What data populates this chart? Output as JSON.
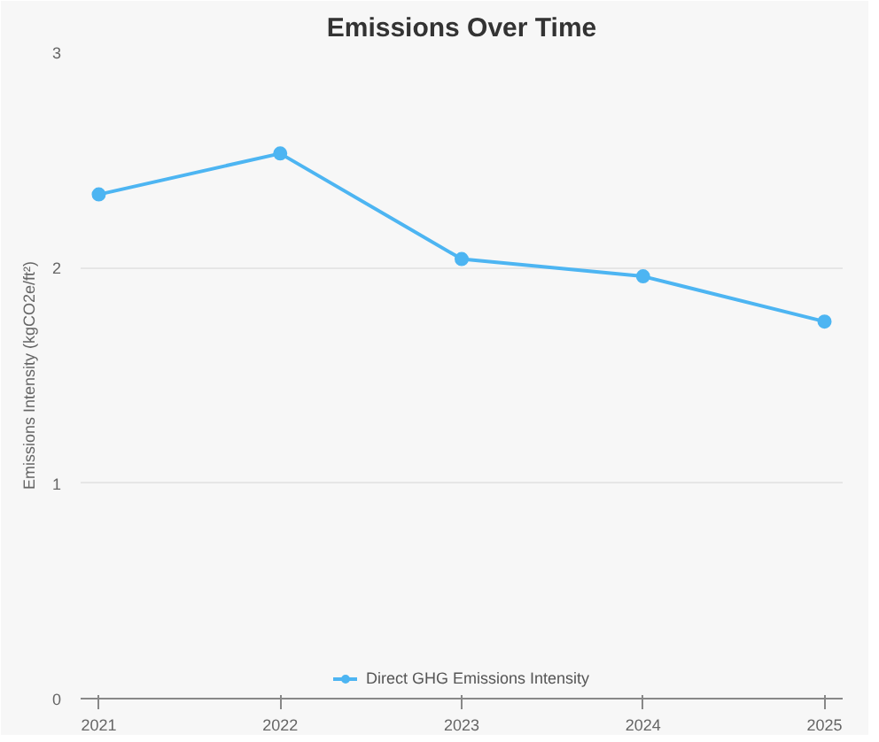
{
  "chart_data": {
    "type": "line",
    "title": "Emissions Over Time",
    "ylabel": "Emissions Intensity (kgCO2e/ft²)",
    "categories": [
      "2021",
      "2022",
      "2023",
      "2024",
      "2025"
    ],
    "series": [
      {
        "name": "Direct GHG Emissions Intensity",
        "color": "#4db5f2",
        "values": [
          2.34,
          2.53,
          2.04,
          1.96,
          1.75
        ]
      }
    ],
    "ylim": [
      0,
      3
    ],
    "yticks": [
      0,
      1,
      2,
      3
    ],
    "grid": "y",
    "legend": "bottom",
    "marker": "circle",
    "line_style": "solid"
  }
}
